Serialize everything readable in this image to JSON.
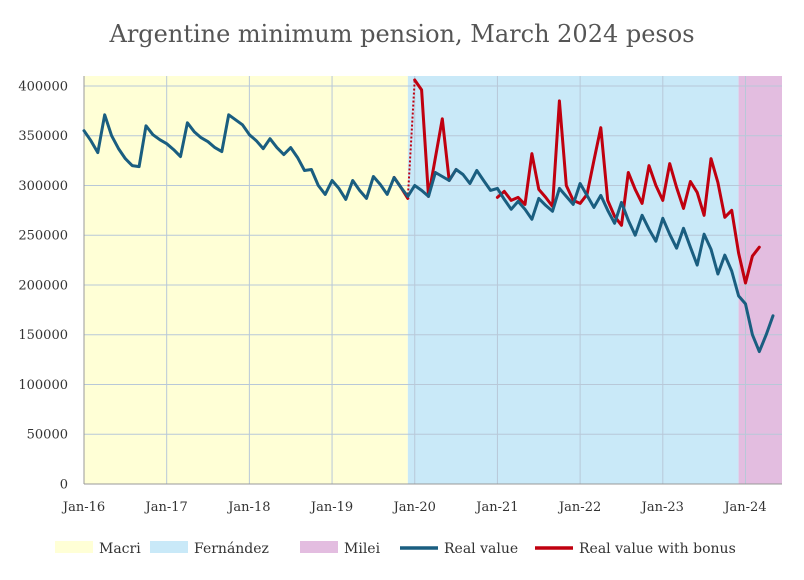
{
  "chart_data": {
    "type": "line",
    "title": "Argentine minimum pension, March 2024 pesos",
    "xlabel": "",
    "ylabel": "",
    "ylim": [
      0,
      410000
    ],
    "x_ticks": [
      "Jan-16",
      "Jan-17",
      "Jan-18",
      "Jan-19",
      "Jan-20",
      "Jan-21",
      "Jan-22",
      "Jan-23",
      "Jan-24"
    ],
    "y_ticks": [
      {
        "value": 0,
        "label": "0"
      },
      {
        "value": 50000,
        "label": "50000"
      },
      {
        "value": 100000,
        "label": "100000"
      },
      {
        "value": 150000,
        "label": "150000"
      },
      {
        "value": 200000,
        "label": "200000"
      },
      {
        "value": 250000,
        "label": "250000"
      },
      {
        "value": 300000,
        "label": "300000"
      },
      {
        "value": 350000,
        "label": "350000"
      },
      {
        "value": 400000,
        "label": "400000"
      }
    ],
    "grid": true,
    "legend_position": "bottom",
    "periods": [
      {
        "name": "Macri",
        "start": "2016-01",
        "end": "2019-12",
        "color": "#ffffd6"
      },
      {
        "name": "Fernández",
        "start": "2019-12",
        "end": "2023-12",
        "color": "#c9e9f8"
      },
      {
        "name": "Milei",
        "start": "2023-12",
        "end": "2024-03",
        "color": "#e3bde0"
      }
    ],
    "series": [
      {
        "name": "Real value",
        "color": "#1a5e80",
        "points": [
          [
            "2016-01",
            355000
          ],
          [
            "2016-02",
            345000
          ],
          [
            "2016-03",
            333000
          ],
          [
            "2016-04",
            371000
          ],
          [
            "2016-05",
            350000
          ],
          [
            "2016-06",
            337000
          ],
          [
            "2016-07",
            327000
          ],
          [
            "2016-08",
            320000
          ],
          [
            "2016-09",
            319000
          ],
          [
            "2016-10",
            360000
          ],
          [
            "2016-11",
            351000
          ],
          [
            "2016-12",
            346000
          ],
          [
            "2017-01",
            342000
          ],
          [
            "2017-02",
            336000
          ],
          [
            "2017-03",
            329000
          ],
          [
            "2017-04",
            363000
          ],
          [
            "2017-05",
            354000
          ],
          [
            "2017-06",
            348000
          ],
          [
            "2017-07",
            344000
          ],
          [
            "2017-08",
            338000
          ],
          [
            "2017-09",
            334000
          ],
          [
            "2017-10",
            371000
          ],
          [
            "2017-11",
            366000
          ],
          [
            "2017-12",
            361000
          ],
          [
            "2018-01",
            351000
          ],
          [
            "2018-02",
            345000
          ],
          [
            "2018-03",
            337000
          ],
          [
            "2018-04",
            347000
          ],
          [
            "2018-05",
            338000
          ],
          [
            "2018-06",
            331000
          ],
          [
            "2018-07",
            338000
          ],
          [
            "2018-08",
            328000
          ],
          [
            "2018-09",
            315000
          ],
          [
            "2018-10",
            316000
          ],
          [
            "2018-11",
            300000
          ],
          [
            "2018-12",
            291000
          ],
          [
            "2019-01",
            305000
          ],
          [
            "2019-02",
            297000
          ],
          [
            "2019-03",
            286000
          ],
          [
            "2019-04",
            305000
          ],
          [
            "2019-05",
            295000
          ],
          [
            "2019-06",
            287000
          ],
          [
            "2019-07",
            309000
          ],
          [
            "2019-08",
            301000
          ],
          [
            "2019-09",
            291000
          ],
          [
            "2019-10",
            308000
          ],
          [
            "2019-11",
            298000
          ],
          [
            "2019-12",
            289000
          ],
          [
            "2020-01",
            300000
          ],
          [
            "2020-02",
            295000
          ],
          [
            "2020-03",
            289000
          ],
          [
            "2020-04",
            313000
          ],
          [
            "2020-05",
            309000
          ],
          [
            "2020-06",
            305000
          ],
          [
            "2020-07",
            316000
          ],
          [
            "2020-08",
            311000
          ],
          [
            "2020-09",
            302000
          ],
          [
            "2020-10",
            315000
          ],
          [
            "2020-11",
            305000
          ],
          [
            "2020-12",
            295000
          ],
          [
            "2021-01",
            297000
          ],
          [
            "2021-02",
            286000
          ],
          [
            "2021-03",
            276000
          ],
          [
            "2021-04",
            284000
          ],
          [
            "2021-05",
            276000
          ],
          [
            "2021-06",
            266000
          ],
          [
            "2021-07",
            287000
          ],
          [
            "2021-08",
            280000
          ],
          [
            "2021-09",
            274000
          ],
          [
            "2021-10",
            297000
          ],
          [
            "2021-11",
            289000
          ],
          [
            "2021-12",
            281000
          ],
          [
            "2022-01",
            302000
          ],
          [
            "2022-02",
            290000
          ],
          [
            "2022-03",
            278000
          ],
          [
            "2022-04",
            290000
          ],
          [
            "2022-05",
            275000
          ],
          [
            "2022-06",
            262000
          ],
          [
            "2022-07",
            283000
          ],
          [
            "2022-08",
            265000
          ],
          [
            "2022-09",
            250000
          ],
          [
            "2022-10",
            270000
          ],
          [
            "2022-11",
            256000
          ],
          [
            "2022-12",
            244000
          ],
          [
            "2023-01",
            267000
          ],
          [
            "2023-02",
            251000
          ],
          [
            "2023-03",
            237000
          ],
          [
            "2023-04",
            257000
          ],
          [
            "2023-05",
            238000
          ],
          [
            "2023-06",
            220000
          ],
          [
            "2023-07",
            251000
          ],
          [
            "2023-08",
            236000
          ],
          [
            "2023-09",
            211000
          ],
          [
            "2023-10",
            230000
          ],
          [
            "2023-11",
            214000
          ],
          [
            "2023-12",
            189000
          ],
          [
            "2024-01",
            181000
          ],
          [
            "2024-02",
            150000
          ],
          [
            "2024-03",
            133000
          ],
          [
            "2024-04",
            150000
          ],
          [
            "2024-05",
            169000
          ]
        ]
      },
      {
        "name": "Real value with bonus",
        "color": "#c0000f",
        "segments": [
          [
            [
              "2019-10",
              308000
            ],
            [
              "2019-11",
              298000
            ],
            [
              "2019-12",
              287000
            ]
          ],
          [
            [
              "2020-01",
              406000
            ],
            [
              "2020-02",
              396000
            ],
            [
              "2020-03",
              289000
            ],
            [
              "2020-04",
              328000
            ],
            [
              "2020-05",
              367000
            ],
            [
              "2020-06",
              305000
            ],
            [
              "2020-07",
              316000
            ]
          ],
          [
            [
              "2021-01",
              288000
            ],
            [
              "2021-02",
              294000
            ],
            [
              "2021-03",
              285000
            ],
            [
              "2021-04",
              288000
            ],
            [
              "2021-05",
              281000
            ],
            [
              "2021-06",
              332000
            ],
            [
              "2021-07",
              296000
            ],
            [
              "2021-08",
              288000
            ],
            [
              "2021-09",
              279000
            ],
            [
              "2021-10",
              385000
            ],
            [
              "2021-11",
              300000
            ],
            [
              "2021-12",
              285000
            ],
            [
              "2022-01",
              282000
            ],
            [
              "2022-02",
              291000
            ],
            [
              "2022-03",
              325000
            ],
            [
              "2022-04",
              358000
            ],
            [
              "2022-05",
              285000
            ],
            [
              "2022-06",
              269000
            ],
            [
              "2022-07",
              260000
            ],
            [
              "2022-08",
              313000
            ],
            [
              "2022-09",
              296000
            ],
            [
              "2022-10",
              282000
            ],
            [
              "2022-11",
              320000
            ],
            [
              "2022-12",
              300000
            ],
            [
              "2023-01",
              285000
            ],
            [
              "2023-02",
              322000
            ],
            [
              "2023-03",
              298000
            ],
            [
              "2023-04",
              277000
            ],
            [
              "2023-05",
              304000
            ],
            [
              "2023-06",
              293000
            ],
            [
              "2023-07",
              270000
            ],
            [
              "2023-08",
              327000
            ],
            [
              "2023-09",
              303000
            ],
            [
              "2023-10",
              268000
            ],
            [
              "2023-11",
              275000
            ],
            [
              "2023-12",
              232000
            ],
            [
              "2024-01",
              202000
            ],
            [
              "2024-02",
              229000
            ],
            [
              "2024-03",
              238000
            ]
          ]
        ],
        "connector": [
          [
            "2019-12",
            287000
          ],
          [
            "2020-01",
            406000
          ]
        ]
      }
    ]
  },
  "legend": {
    "items": [
      {
        "label": "Macri",
        "type": "box",
        "color": "#ffffd6"
      },
      {
        "label": "Fernández",
        "type": "box",
        "color": "#c9e9f8"
      },
      {
        "label": "Milei",
        "type": "box",
        "color": "#e3bde0"
      },
      {
        "label": "Real value",
        "type": "line",
        "color": "#1a5e80"
      },
      {
        "label": "Real value with bonus",
        "type": "line",
        "color": "#c0000f"
      }
    ]
  }
}
